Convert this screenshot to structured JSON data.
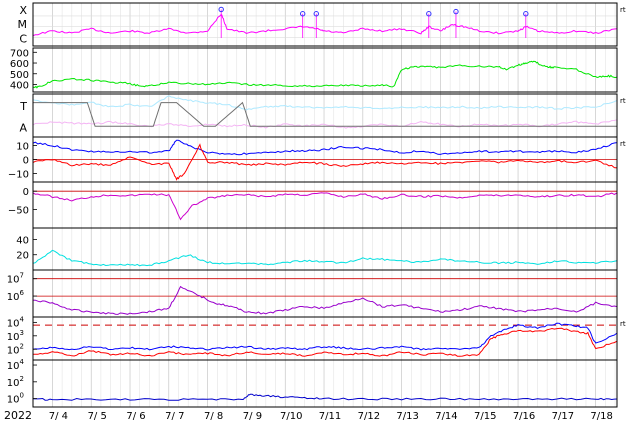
{
  "chart_data": {
    "type": "line",
    "year_label": "2022",
    "date_ticks": [
      "7/ 4",
      "7/ 5",
      "7/ 6",
      "7/ 7",
      "7/ 8",
      "7/ 9",
      "7/10",
      "7/11",
      "7/12",
      "7/13",
      "7/14",
      "7/15",
      "7/16",
      "7/17",
      "7/18"
    ],
    "x_range_days": [
      3.5,
      18.55
    ],
    "right_marker": "rt",
    "panels": [
      {
        "id": "xray",
        "labels": [
          "X",
          "M",
          "C"
        ],
        "series": [
          {
            "color": "#ff00ff",
            "x": [
              3.5,
              4,
              4.5,
              5,
              5.5,
              6,
              6.5,
              7,
              7.5,
              8,
              8.35,
              8.5,
              9,
              9.5,
              10,
              10.45,
              10.8,
              11,
              11.5,
              12,
              12.5,
              13,
              13.5,
              13.7,
              14,
              14.3,
              14.6,
              15,
              15.5,
              16,
              16.2,
              16.5,
              17,
              17.5,
              18,
              18.55
            ],
            "y": [
              0.25,
              0.35,
              0.3,
              0.4,
              0.3,
              0.35,
              0.3,
              0.4,
              0.3,
              0.35,
              0.75,
              0.4,
              0.3,
              0.35,
              0.4,
              0.45,
              0.4,
              0.35,
              0.3,
              0.4,
              0.35,
              0.4,
              0.3,
              0.45,
              0.35,
              0.5,
              0.45,
              0.35,
              0.3,
              0.35,
              0.45,
              0.35,
              0.3,
              0.35,
              0.3,
              0.4
            ]
          },
          {
            "color": "#ff00ff",
            "style": "markers",
            "x": [
              8.35,
              10.45,
              10.8,
              13.7,
              14.4,
              16.2
            ],
            "y": [
              0.85,
              0.75,
              0.75,
              0.75,
              0.8,
              0.75
            ]
          }
        ]
      },
      {
        "id": "wind_speed",
        "ticks": [
          "700",
          "600",
          "500",
          "400"
        ],
        "tick_values": [
          700,
          600,
          500,
          400
        ],
        "ylim": [
          330,
          740
        ],
        "series": [
          {
            "color": "#00e600",
            "x": [
              3.5,
              3.7,
              4,
              4.5,
              5,
              5.5,
              6,
              6.3,
              6.6,
              7,
              7.5,
              8,
              8.5,
              9,
              9.5,
              10,
              10.5,
              11,
              11.5,
              12,
              12.5,
              12.8,
              13,
              13.3,
              13.6,
              14,
              14.5,
              15,
              15.5,
              15.7,
              16,
              16.2,
              16.4,
              16.6,
              16.8,
              17,
              17.5,
              18,
              18.3,
              18.55
            ],
            "y": [
              370,
              385,
              430,
              450,
              440,
              420,
              410,
              380,
              390,
              420,
              410,
              400,
              415,
              400,
              395,
              390,
              385,
              390,
              395,
              385,
              395,
              380,
              540,
              560,
              570,
              560,
              575,
              570,
              565,
              540,
              580,
              600,
              620,
              580,
              560,
              560,
              540,
              470,
              480,
              470
            ]
          }
        ]
      },
      {
        "id": "temperature_density",
        "labels": [
          "T",
          "A"
        ],
        "series": [
          {
            "color": "#aee9ff",
            "x": [
              3.5,
              4,
              4.5,
              5,
              5.5,
              6,
              6.5,
              7,
              7.5,
              8,
              8.5,
              9,
              9.5,
              10,
              10.5,
              11,
              11.5,
              12,
              12.5,
              13,
              13.5,
              14,
              14.5,
              15,
              15.5,
              16,
              16.5,
              17,
              17.5,
              18,
              18.55
            ],
            "y": [
              0.85,
              0.8,
              0.75,
              0.8,
              0.7,
              0.75,
              0.7,
              0.95,
              0.85,
              0.8,
              0.75,
              0.65,
              0.7,
              0.72,
              0.7,
              0.68,
              0.7,
              0.68,
              0.66,
              0.68,
              0.7,
              0.68,
              0.7,
              0.68,
              0.7,
              0.68,
              0.7,
              0.66,
              0.68,
              0.7,
              0.85
            ]
          },
          {
            "color": "#f4b4f4",
            "x": [
              3.5,
              4,
              4.5,
              5,
              5.5,
              6,
              6.5,
              7,
              7.5,
              8,
              8.5,
              9,
              9.5,
              10,
              10.5,
              11,
              11.5,
              12,
              12.5,
              13,
              13.5,
              14,
              14.5,
              15,
              15.5,
              16,
              16.5,
              17,
              17.5,
              18,
              18.55
            ],
            "y": [
              0.3,
              0.35,
              0.32,
              0.3,
              0.35,
              0.3,
              0.25,
              0.3,
              0.25,
              0.3,
              0.25,
              0.28,
              0.22,
              0.3,
              0.25,
              0.3,
              0.22,
              0.25,
              0.3,
              0.25,
              0.35,
              0.3,
              0.25,
              0.3,
              0.25,
              0.3,
              0.25,
              0.3,
              0.35,
              0.3,
              0.4
            ]
          },
          {
            "color": "#707070",
            "x": [
              3.5,
              4.9,
              5.1,
              5.7,
              6.6,
              6.8,
              7.2,
              7.9,
              8.2,
              8.9,
              9.1,
              18.55
            ],
            "y": [
              0.8,
              0.8,
              0.25,
              0.25,
              0.25,
              0.8,
              0.8,
              0.25,
              0.25,
              0.8,
              0.25,
              0.25
            ]
          }
        ]
      },
      {
        "id": "magnetic_field",
        "ticks": [
          "10",
          "0",
          "−10"
        ],
        "tick_values": [
          10,
          0,
          -10
        ],
        "ylim": [
          -16,
          16
        ],
        "series": [
          {
            "color": "#0000ff",
            "x": [
              3.5,
              4,
              4.5,
              5,
              5.5,
              6,
              6.5,
              7,
              7.2,
              7.5,
              8,
              8.5,
              9,
              9.5,
              10,
              10.5,
              11,
              11.5,
              12,
              12.5,
              13,
              13.5,
              14,
              14.5,
              15,
              15.5,
              16,
              16.5,
              17,
              17.5,
              18,
              18.55
            ],
            "y": [
              12,
              10,
              7,
              6,
              5,
              6,
              5,
              6,
              14,
              10,
              5,
              4,
              4,
              5,
              6,
              6,
              7,
              9,
              8,
              7,
              5,
              6,
              4,
              5,
              6,
              5,
              6,
              5,
              6,
              5,
              7,
              12
            ]
          },
          {
            "color": "#ff0000",
            "x": [
              3.5,
              4,
              4.5,
              5,
              5.5,
              6,
              6.5,
              7,
              7.2,
              7.4,
              7.8,
              8,
              8.5,
              9,
              9.5,
              10,
              10.5,
              11,
              11.5,
              12,
              12.5,
              13,
              13.5,
              14,
              14.5,
              15,
              15.5,
              16,
              16.5,
              17,
              17.5,
              18,
              18.55
            ],
            "y": [
              -2,
              0,
              -4,
              -3,
              -4,
              2,
              -3,
              -3,
              -14,
              -10,
              10,
              -2,
              -2,
              -4,
              -3,
              -4,
              -2,
              -3,
              -5,
              -3,
              -2,
              -3,
              -2,
              -3,
              -2,
              -1,
              -2,
              -1,
              -2,
              -1,
              -2,
              -1,
              -6
            ]
          }
        ]
      },
      {
        "id": "bz_trace",
        "ticks": [
          "0",
          "−50"
        ],
        "tick_values": [
          0,
          -50
        ],
        "ylim": [
          -100,
          25
        ],
        "series": [
          {
            "color": "#cc00cc",
            "x": [
              3.5,
              4,
              4.5,
              5,
              5.5,
              6,
              6.5,
              7,
              7.3,
              7.6,
              8,
              8.5,
              9,
              9.5,
              10,
              10.5,
              11,
              11.5,
              12,
              12.5,
              13,
              13.5,
              14,
              14.5,
              15,
              15.5,
              16,
              16.5,
              17,
              17.5,
              18,
              18.55
            ],
            "y": [
              -5,
              -15,
              -25,
              -15,
              -10,
              -12,
              -8,
              -10,
              -75,
              -40,
              -20,
              -12,
              -10,
              -15,
              -8,
              -10,
              -5,
              -15,
              -8,
              -20,
              -10,
              -15,
              -12,
              -18,
              -10,
              -12,
              -10,
              -15,
              -12,
              -10,
              -15,
              -5
            ]
          }
        ]
      },
      {
        "id": "kp_index",
        "ticks": [
          "40",
          "20"
        ],
        "tick_values": [
          40,
          20
        ],
        "ylim": [
          0,
          55
        ],
        "series": [
          {
            "color": "#00e0e0",
            "x": [
              3.5,
              4,
              4.5,
              5,
              5.5,
              6,
              6.5,
              7,
              7.5,
              8,
              8.5,
              9,
              9.5,
              10,
              10.5,
              11,
              11.5,
              12,
              12.5,
              13,
              13.5,
              14,
              14.5,
              15,
              15.5,
              16,
              16.5,
              17,
              17.5,
              18,
              18.55
            ],
            "y": [
              8,
              25,
              12,
              8,
              6,
              7,
              6,
              12,
              20,
              10,
              8,
              9,
              7,
              10,
              12,
              11,
              9,
              15,
              14,
              12,
              10,
              14,
              12,
              10,
              9,
              10,
              8,
              12,
              10,
              9,
              12
            ]
          }
        ]
      },
      {
        "id": "electron_flux",
        "ticks": [
          "10^7",
          "10^6"
        ],
        "tick_values": [
          7,
          6
        ],
        "ylim": [
          4.8,
          7.5
        ],
        "series": [
          {
            "color": "#9900cc",
            "x": [
              3.5,
              4,
              4.5,
              5,
              5.5,
              6,
              6.5,
              7,
              7.3,
              7.8,
              8.2,
              8.6,
              9,
              9.5,
              10,
              10.5,
              11,
              11.5,
              12,
              12.5,
              13,
              13.5,
              14,
              14.5,
              15,
              15.5,
              16,
              16.5,
              17,
              17.5,
              18,
              18.55
            ],
            "y": [
              5.8,
              5.6,
              5.2,
              5.1,
              5.0,
              5.0,
              5.1,
              5.3,
              6.5,
              6.0,
              5.6,
              5.4,
              5.1,
              5.0,
              5.2,
              5.4,
              5.3,
              5.6,
              5.9,
              5.4,
              5.5,
              5.3,
              5.1,
              5.2,
              5.4,
              5.3,
              5.1,
              5.2,
              5.3,
              5.1,
              5.6,
              5.4
            ]
          }
        ]
      },
      {
        "id": "proton_flux",
        "ticks": [
          "10^4",
          "10^3",
          "10^2"
        ],
        "tick_values": [
          4,
          3,
          2
        ],
        "ylim": [
          1.2,
          4.4
        ],
        "threshold": 3.8,
        "series": [
          {
            "color": "#0000ff",
            "x": [
              3.5,
              4,
              4.5,
              5,
              5.5,
              6,
              6.5,
              7,
              7.5,
              8,
              8.5,
              9,
              9.5,
              10,
              10.5,
              11,
              11.5,
              12,
              12.5,
              13,
              13.5,
              14,
              14.5,
              15,
              15.3,
              15.6,
              16,
              16.5,
              17,
              17.5,
              17.8,
              18,
              18.55
            ],
            "y": [
              2.0,
              2.1,
              2.0,
              2.2,
              2.0,
              2.1,
              2.0,
              2.2,
              2.1,
              2.0,
              2.1,
              2.2,
              2.0,
              2.1,
              2.0,
              2.2,
              2.1,
              2.0,
              2.1,
              2.2,
              2.0,
              2.1,
              2.0,
              2.1,
              3.0,
              3.4,
              3.8,
              3.6,
              3.9,
              3.7,
              3.6,
              2.4,
              3.2
            ]
          },
          {
            "color": "#ff0000",
            "x": [
              3.5,
              4,
              4.5,
              5,
              5.5,
              6,
              6.5,
              7,
              7.5,
              8,
              8.5,
              9,
              9.5,
              10,
              10.5,
              11,
              11.5,
              12,
              12.5,
              13,
              13.5,
              14,
              14.5,
              15,
              15.3,
              15.6,
              16,
              16.5,
              17,
              17.5,
              17.8,
              18,
              18.55
            ],
            "y": [
              1.6,
              1.8,
              1.5,
              1.9,
              1.6,
              1.7,
              1.5,
              1.8,
              1.6,
              1.7,
              1.5,
              1.8,
              1.6,
              1.7,
              1.5,
              1.8,
              1.6,
              1.7,
              1.5,
              1.8,
              1.6,
              1.7,
              1.5,
              1.6,
              2.8,
              3.1,
              3.4,
              3.3,
              3.6,
              3.3,
              3.2,
              2.0,
              2.6
            ]
          }
        ]
      },
      {
        "id": "neutron_count",
        "ticks": [
          "10^4",
          "10^2",
          "10^0"
        ],
        "tick_values": [
          4,
          2,
          0
        ],
        "ylim": [
          -1,
          4.6
        ],
        "series": [
          {
            "color": "#0000cc",
            "x": [
              3.5,
              4,
              5,
              6,
              7,
              8,
              8.9,
              9.1,
              9.5,
              10,
              10.5,
              11,
              12,
              13,
              14,
              15,
              16,
              17,
              18,
              18.55
            ],
            "y": [
              -0.1,
              -0.1,
              -0.1,
              -0.1,
              -0.1,
              -0.1,
              -0.1,
              0.5,
              0.3,
              0.2,
              0.1,
              0.0,
              -0.05,
              -0.05,
              -0.05,
              -0.05,
              -0.05,
              -0.05,
              -0.05,
              -0.05
            ]
          }
        ]
      }
    ]
  }
}
